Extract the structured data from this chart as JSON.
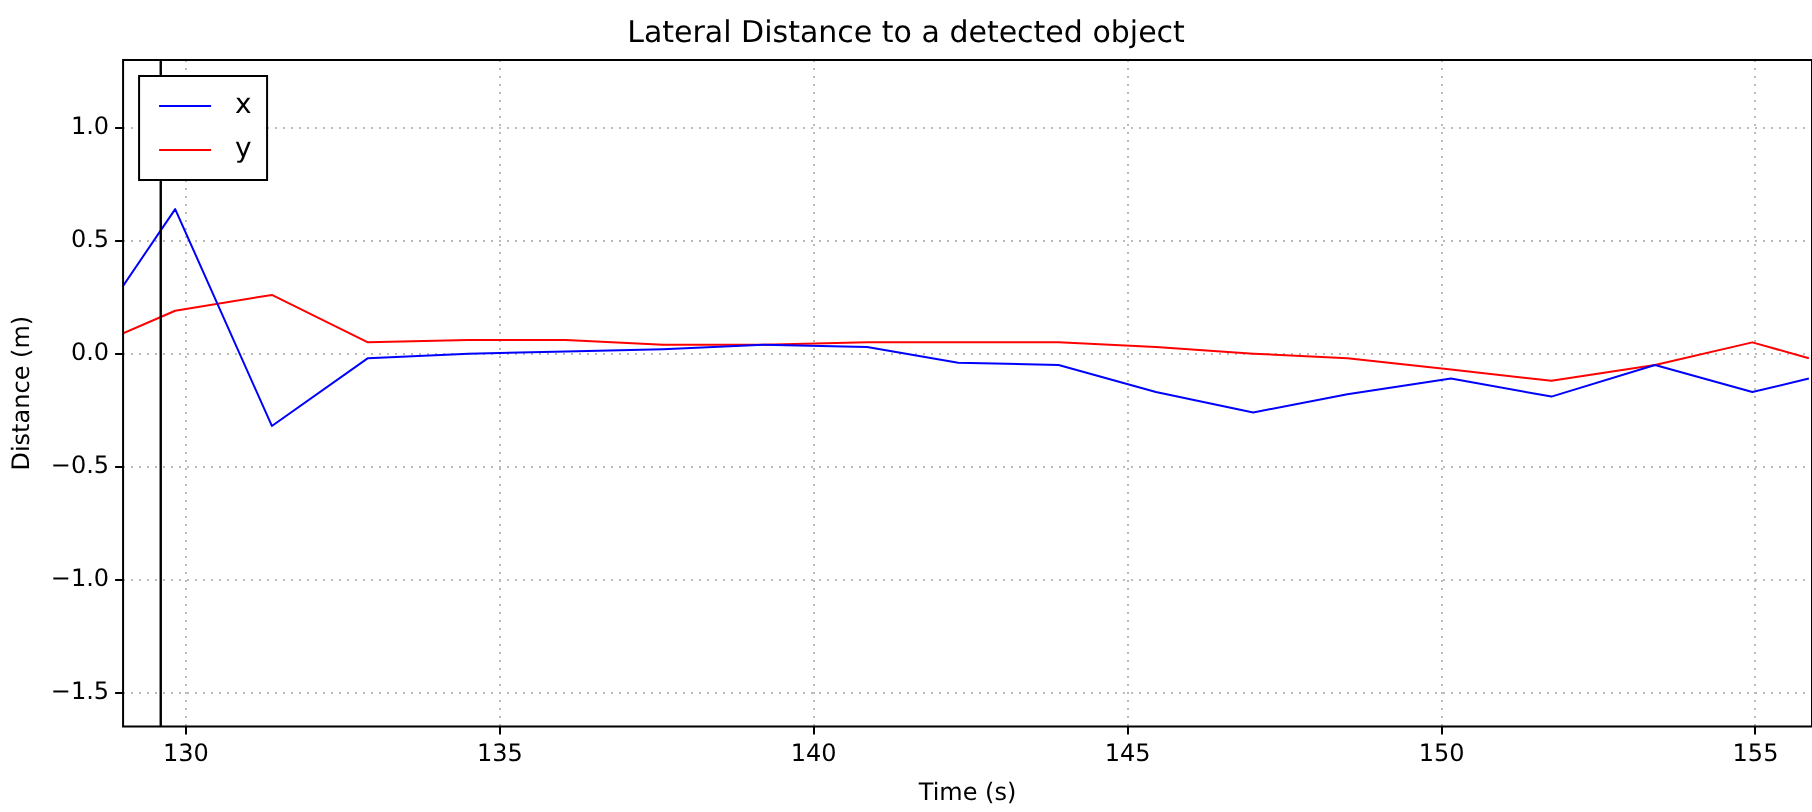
{
  "chart_data": {
    "type": "line",
    "title": "Lateral Distance to a detected object",
    "xlabel": "Time (s)",
    "ylabel": "Distance (m)",
    "x": [
      129.0,
      129.83,
      131.37,
      132.9,
      134.5,
      136.05,
      137.6,
      139.2,
      140.85,
      142.3,
      143.9,
      145.45,
      147.0,
      148.5,
      150.15,
      151.75,
      153.4,
      154.95,
      155.85
    ],
    "series": [
      {
        "name": "x",
        "color": "#0000ff",
        "values": [
          0.3,
          0.64,
          -0.32,
          -0.02,
          0.0,
          0.01,
          0.02,
          0.04,
          0.03,
          -0.04,
          -0.05,
          -0.17,
          -0.26,
          -0.18,
          -0.11,
          -0.19,
          -0.05,
          -0.17,
          -0.11
        ]
      },
      {
        "name": "y",
        "color": "#ff0000",
        "values": [
          0.09,
          0.19,
          0.26,
          0.05,
          0.06,
          0.06,
          0.04,
          0.04,
          0.05,
          0.05,
          0.05,
          0.03,
          0.0,
          -0.02,
          -0.07,
          -0.12,
          -0.05,
          0.05,
          -0.02
        ]
      }
    ],
    "xlim": [
      129.0,
      155.9
    ],
    "xticks": [
      130,
      135,
      140,
      145,
      150,
      155
    ],
    "ylim": [
      -1.65,
      1.3
    ],
    "yticks": [
      {
        "value": -1.5,
        "label": "−1.5"
      },
      {
        "value": -1.0,
        "label": "−1.0"
      },
      {
        "value": -0.5,
        "label": "−0.5"
      },
      {
        "value": 0,
        "label": "0.0"
      },
      {
        "value": 0.5,
        "label": "0.5"
      },
      {
        "value": 1.0,
        "label": "1.0"
      }
    ],
    "ref_lines": [
      {
        "axis": "x",
        "value": 129.6,
        "color": "#000000"
      }
    ],
    "grid": true,
    "legend": "top left",
    "line_style": "solid",
    "marker": "none"
  }
}
